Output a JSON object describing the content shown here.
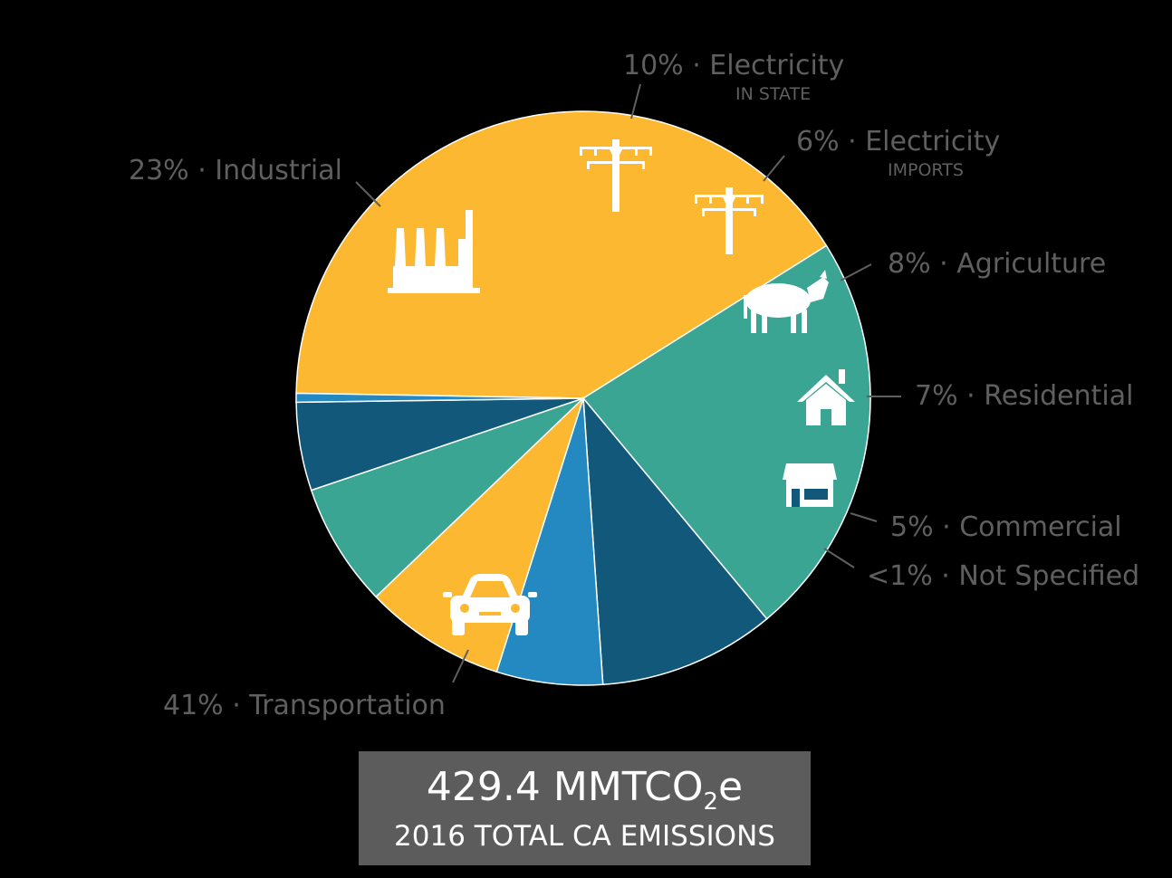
{
  "colors": {
    "background": "#000000",
    "teal": "#39a592",
    "navy": "#12587a",
    "blue": "#2488c1",
    "yellow": "#fbb830",
    "label": "#5f5f5f",
    "box": "#5c5c5c"
  },
  "chart_data": {
    "type": "pie",
    "total": {
      "value": "429.4 MMTCO",
      "subscript": "2",
      "suffix": "e",
      "caption": "2016 TOTAL CA EMISSIONS"
    },
    "slices": [
      {
        "id": "transportation",
        "label": "41% · Transportation",
        "sublabel": "",
        "value": 41,
        "color": "#fbb830",
        "icon": "car-icon"
      },
      {
        "id": "industrial",
        "label": "23% · Industrial",
        "sublabel": "",
        "value": 23,
        "color": "#39a592",
        "icon": "factory-icon"
      },
      {
        "id": "electricity-in-state",
        "label": "10% · Electricity",
        "sublabel": "IN STATE",
        "value": 10,
        "color": "#12587a",
        "icon": "power-tower-icon"
      },
      {
        "id": "electricity-imports",
        "label": "6% · Electricity",
        "sublabel": "IMPORTS",
        "value": 6,
        "color": "#2488c1",
        "icon": "power-tower-icon"
      },
      {
        "id": "agriculture",
        "label": "8% · Agriculture",
        "sublabel": "",
        "value": 8,
        "color": "#fbb830",
        "icon": "cow-icon"
      },
      {
        "id": "residential",
        "label": "7% · Residential",
        "sublabel": "",
        "value": 7,
        "color": "#39a592",
        "icon": "house-icon"
      },
      {
        "id": "commercial",
        "label": "5% · Commercial",
        "sublabel": "",
        "value": 5,
        "color": "#12587a",
        "icon": "storefront-icon"
      },
      {
        "id": "not-specified",
        "label": "<1% · Not Specified",
        "sublabel": "",
        "value": 0.5,
        "color": "#2488c1",
        "icon": ""
      }
    ]
  }
}
